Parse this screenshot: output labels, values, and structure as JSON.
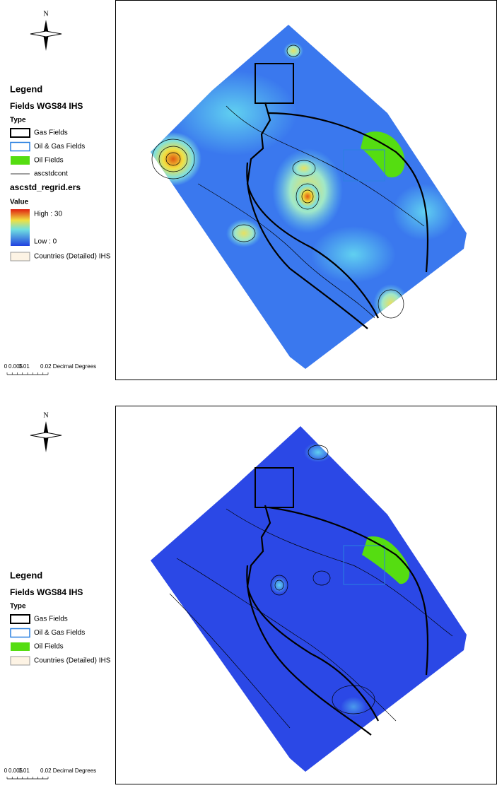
{
  "panels": [
    {
      "north": "N",
      "legend": {
        "title": "Legend",
        "layer": "Fields WGS84 IHS",
        "type_heading": "Type",
        "items": [
          "Gas Fields",
          "Oil & Gas Fields",
          "Oil Fields"
        ],
        "contour": "ascstdcont",
        "raster": "ascstd_regrid.ers",
        "value_heading": "Value",
        "high": "High : 30",
        "low": "Low : 0",
        "countries": "Countries (Detailed) IHS"
      },
      "scale": {
        "labels": [
          "0",
          "0.005",
          "0.01",
          "0.02 Decimal Degrees"
        ]
      }
    },
    {
      "north": "N",
      "legend": {
        "title": "Legend",
        "layer": "Fields WGS84 IHS",
        "type_heading": "Type",
        "items": [
          "Gas Fields",
          "Oil & Gas Fields",
          "Oil Fields"
        ],
        "countries": "Countries (Detailed) IHS"
      },
      "scale": {
        "labels": [
          "0",
          "0.005",
          "0.01",
          "0.02 Decimal Degrees"
        ]
      }
    }
  ]
}
